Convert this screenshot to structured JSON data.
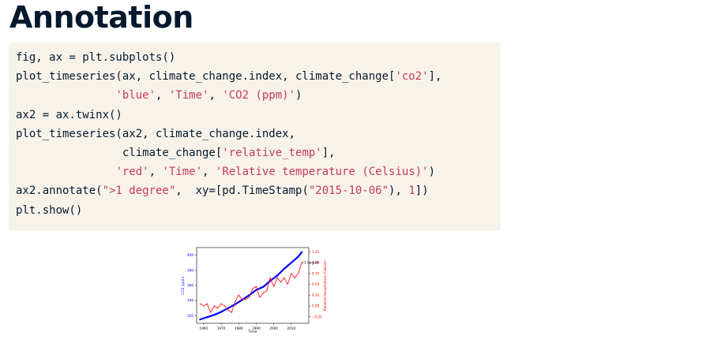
{
  "page": {
    "title": "Annotation"
  },
  "code": {
    "lines": [
      [
        {
          "t": "fig, ax = plt.subplots()",
          "c": "plain"
        }
      ],
      [
        {
          "t": "plot_timeseries(ax, climate_change.index, climate_change[",
          "c": "plain"
        },
        {
          "t": "'co2'",
          "c": "str"
        },
        {
          "t": "],",
          "c": "plain"
        }
      ],
      [
        {
          "t": "               ",
          "c": "plain"
        },
        {
          "t": "'blue'",
          "c": "str"
        },
        {
          "t": ", ",
          "c": "plain"
        },
        {
          "t": "'Time'",
          "c": "str"
        },
        {
          "t": ", ",
          "c": "plain"
        },
        {
          "t": "'CO2 (ppm)'",
          "c": "str"
        },
        {
          "t": ")",
          "c": "plain"
        }
      ],
      [
        {
          "t": "ax2 = ax.twinx()",
          "c": "plain"
        }
      ],
      [
        {
          "t": "plot_timeseries(ax2, climate_change.index,",
          "c": "plain"
        }
      ],
      [
        {
          "t": "                climate_change[",
          "c": "plain"
        },
        {
          "t": "'relative_temp'",
          "c": "str"
        },
        {
          "t": "],",
          "c": "plain"
        }
      ],
      [
        {
          "t": "               ",
          "c": "plain"
        },
        {
          "t": "'red'",
          "c": "str"
        },
        {
          "t": ", ",
          "c": "plain"
        },
        {
          "t": "'Time'",
          "c": "str"
        },
        {
          "t": ", ",
          "c": "plain"
        },
        {
          "t": "'Relative temperature (Celsius)'",
          "c": "str"
        },
        {
          "t": ")",
          "c": "plain"
        }
      ],
      [
        {
          "t": "ax2.annotate(",
          "c": "plain"
        },
        {
          "t": "\">1 degree\"",
          "c": "str"
        },
        {
          "t": ",  xy=[pd.TimeStamp(",
          "c": "plain"
        },
        {
          "t": "\"2015-10-06\"",
          "c": "str"
        },
        {
          "t": "), ",
          "c": "plain"
        },
        {
          "t": "1",
          "c": "num"
        },
        {
          "t": "])",
          "c": "plain"
        }
      ],
      [
        {
          "t": "plt.show()",
          "c": "plain"
        }
      ]
    ]
  },
  "chart_data": {
    "type": "line",
    "xlabel": "Time",
    "ylabel": "CO2 (ppm)",
    "y2label": "Relative temperature (Celsius)",
    "x_ticks": [
      1960,
      1970,
      1980,
      1990,
      2000,
      2010
    ],
    "xlim": [
      1956,
      2020
    ],
    "y_ticks": [
      320,
      340,
      360,
      380,
      400
    ],
    "ylim": [
      310,
      410
    ],
    "y2_ticks": [
      -0.25,
      0.0,
      0.25,
      0.5,
      0.75,
      1.0,
      1.25
    ],
    "y2_tick_labels": [
      "−0.25",
      "0.00",
      "0.25",
      "0.50",
      "0.75",
      "1.00",
      "1.25"
    ],
    "y2lim": [
      -0.4,
      1.35
    ],
    "annotation": {
      "text": ">1 degree",
      "x": 2015.76,
      "y": 1
    },
    "series": [
      {
        "axis": "left",
        "color": "#0000ff",
        "x": [
          1958,
          1962,
          1966,
          1970,
          1974,
          1978,
          1982,
          1986,
          1990,
          1994,
          1998,
          2002,
          2006,
          2010,
          2014,
          2016
        ],
        "values": [
          315,
          318,
          321,
          325,
          330,
          335,
          341,
          347,
          354,
          358,
          366,
          373,
          382,
          390,
          398,
          404
        ]
      },
      {
        "axis": "right",
        "color": "#ff0000",
        "x": [
          1958,
          1960,
          1962,
          1964,
          1966,
          1968,
          1970,
          1972,
          1974,
          1976,
          1978,
          1980,
          1982,
          1984,
          1986,
          1988,
          1990,
          1992,
          1994,
          1996,
          1998,
          2000,
          2002,
          2004,
          2006,
          2008,
          2010,
          2012,
          2014,
          2016
        ],
        "values": [
          0.05,
          0.0,
          0.05,
          -0.15,
          0.0,
          -0.05,
          0.05,
          0.0,
          -0.1,
          -0.15,
          0.1,
          0.25,
          0.15,
          0.15,
          0.2,
          0.4,
          0.45,
          0.2,
          0.3,
          0.35,
          0.65,
          0.45,
          0.65,
          0.55,
          0.65,
          0.5,
          0.75,
          0.65,
          0.75,
          1.0
        ]
      }
    ]
  }
}
